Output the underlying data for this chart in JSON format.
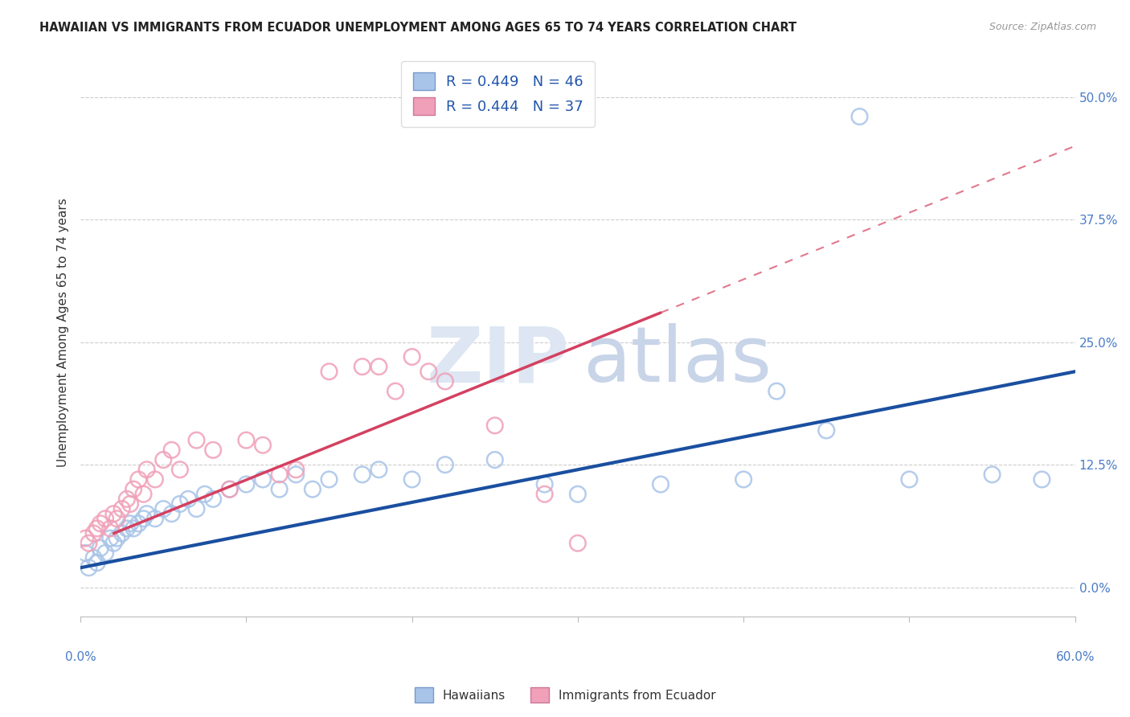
{
  "title": "HAWAIIAN VS IMMIGRANTS FROM ECUADOR UNEMPLOYMENT AMONG AGES 65 TO 74 YEARS CORRELATION CHART",
  "source": "Source: ZipAtlas.com",
  "ylabel": "Unemployment Among Ages 65 to 74 years",
  "ytick_labels": [
    "0.0%",
    "12.5%",
    "25.0%",
    "37.5%",
    "50.0%"
  ],
  "ytick_values": [
    0.0,
    12.5,
    25.0,
    37.5,
    50.0
  ],
  "xlim": [
    0.0,
    60.0
  ],
  "ylim": [
    -3.0,
    55.0
  ],
  "hawaiians_R": 0.449,
  "hawaiians_N": 46,
  "ecuador_R": 0.444,
  "ecuador_N": 37,
  "hawaiian_scatter_color": "#a8c4e8",
  "ecuador_scatter_color": "#f0a0b8",
  "hawaiian_line_color": "#1a4fa0",
  "ecuador_line_color": "#d44060",
  "hawaiian_scatter_x": [
    0.3,
    0.5,
    0.8,
    1.0,
    1.2,
    1.5,
    1.8,
    2.0,
    2.2,
    2.5,
    2.8,
    3.0,
    3.2,
    3.5,
    3.8,
    4.0,
    4.5,
    5.0,
    5.5,
    6.0,
    6.5,
    7.0,
    7.5,
    8.0,
    9.0,
    10.0,
    11.0,
    12.0,
    13.0,
    14.0,
    15.0,
    17.0,
    18.0,
    20.0,
    22.0,
    25.0,
    28.0,
    30.0,
    35.0,
    40.0,
    42.0,
    45.0,
    47.0,
    50.0,
    55.0,
    58.0
  ],
  "hawaiian_scatter_y": [
    3.5,
    2.0,
    3.0,
    2.5,
    4.0,
    3.5,
    5.0,
    4.5,
    5.0,
    5.5,
    6.0,
    6.5,
    6.0,
    6.5,
    7.0,
    7.5,
    7.0,
    8.0,
    7.5,
    8.5,
    9.0,
    8.0,
    9.5,
    9.0,
    10.0,
    10.5,
    11.0,
    10.0,
    11.5,
    10.0,
    11.0,
    11.5,
    12.0,
    11.0,
    12.5,
    13.0,
    10.5,
    9.5,
    10.5,
    11.0,
    20.0,
    16.0,
    48.0,
    11.0,
    11.5,
    11.0
  ],
  "ecuador_scatter_x": [
    0.3,
    0.5,
    0.8,
    1.0,
    1.2,
    1.5,
    1.8,
    2.0,
    2.2,
    2.5,
    2.8,
    3.0,
    3.2,
    3.5,
    3.8,
    4.0,
    4.5,
    5.0,
    5.5,
    6.0,
    7.0,
    8.0,
    9.0,
    10.0,
    11.0,
    12.0,
    13.0,
    15.0,
    17.0,
    18.0,
    19.0,
    20.0,
    21.0,
    22.0,
    25.0,
    28.0,
    30.0
  ],
  "ecuador_scatter_y": [
    5.0,
    4.5,
    5.5,
    6.0,
    6.5,
    7.0,
    6.0,
    7.5,
    7.0,
    8.0,
    9.0,
    8.5,
    10.0,
    11.0,
    9.5,
    12.0,
    11.0,
    13.0,
    14.0,
    12.0,
    15.0,
    14.0,
    10.0,
    15.0,
    14.5,
    11.5,
    12.0,
    22.0,
    22.5,
    22.5,
    20.0,
    23.5,
    22.0,
    21.0,
    16.5,
    9.5,
    4.5
  ],
  "haw_line_x0": 0.0,
  "haw_line_y0": 2.0,
  "haw_line_x1": 60.0,
  "haw_line_y1": 22.0,
  "ecu_line_x0": 2.0,
  "ecu_line_y0": 5.5,
  "ecu_line_x1": 35.0,
  "ecu_line_y1": 28.0,
  "ecu_dash_x0": 35.0,
  "ecu_dash_y0": 28.0,
  "ecu_dash_x1": 60.0,
  "ecu_dash_y1": 45.0,
  "watermark_zip_color": "#dde6f2",
  "watermark_atlas_color": "#c8d4e8"
}
